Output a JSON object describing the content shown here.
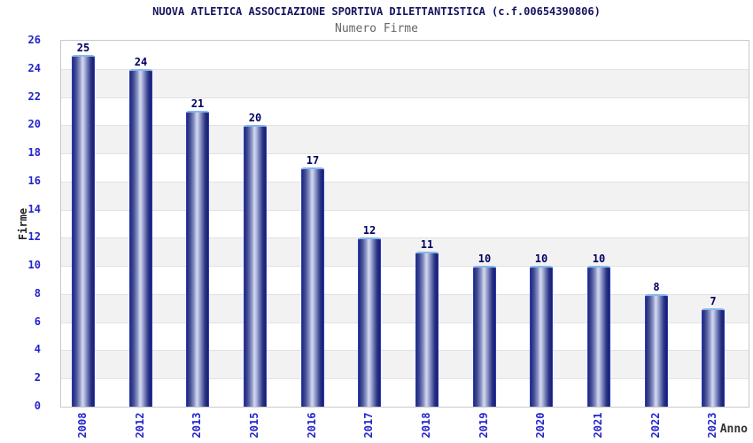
{
  "chart_data": {
    "type": "bar",
    "title": "NUOVA ATLETICA ASSOCIAZIONE SPORTIVA DILETTANTISTICA (c.f.00654390806)",
    "subtitle": "Numero Firme",
    "xlabel": "Anno",
    "ylabel": "Firme",
    "categories": [
      "2008",
      "2012",
      "2013",
      "2015",
      "2016",
      "2017",
      "2018",
      "2019",
      "2020",
      "2021",
      "2022",
      "2023"
    ],
    "values": [
      25,
      24,
      21,
      20,
      17,
      12,
      11,
      10,
      10,
      10,
      8,
      7
    ],
    "ylim": [
      0,
      26
    ],
    "ytick_step": 2,
    "grid": "horizontal",
    "legend": "none",
    "background_bands": "alternating",
    "colors": {
      "title": "#14145e",
      "subtitle": "#666666",
      "tick_label": "#2424cc",
      "axis_label": "#222222",
      "value_label": "#000060",
      "bar_dark": "#1f2979",
      "bar_light": "#d4daee",
      "bar_outline": "#2b38c0",
      "bar_top_cap": "#85b7ec",
      "band_alt": "#f2f2f2",
      "gridline": "#e2e2e2",
      "plot_border": "#c9c9c9"
    }
  }
}
